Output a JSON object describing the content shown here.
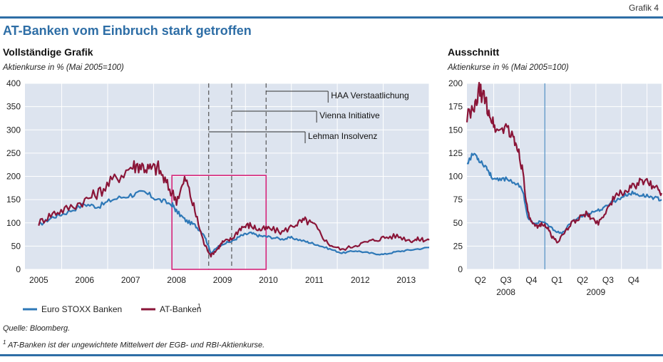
{
  "header": {
    "figure_label": "Grafik 4",
    "title": "AT-Banken vom Einbruch stark getroffen"
  },
  "footer": {
    "source": "Quelle: Bloomberg.",
    "note_marker": "1",
    "note": "AT-Banken ist der ungewichtete Mittelwert der EGB- und RBI-Aktienkurse."
  },
  "colors": {
    "euro": "#2e78b7",
    "at": "#8a1538",
    "box": "#d6257a",
    "panel": "#dde4ef",
    "rule": "#2e6ea6"
  },
  "chart_data": [
    {
      "type": "line",
      "title": "Vollständige Grafik",
      "ylabel": "Aktienkurse in % (Mai 2005=100)",
      "ylim": [
        0,
        400
      ],
      "yticks": [
        0,
        50,
        100,
        150,
        200,
        250,
        300,
        350,
        400
      ],
      "xlim": [
        2004.7,
        2013.5
      ],
      "xtick_labels": [
        "2005",
        "2006",
        "2007",
        "2008",
        "2009",
        "2010",
        "2011",
        "2012",
        "2013"
      ],
      "grid": true,
      "legend_position": "bottom-left",
      "series": [
        {
          "name": "Euro STOXX Banken",
          "x": [
            2005.0,
            2005.3,
            2005.6,
            2006.0,
            2006.3,
            2006.6,
            2007.0,
            2007.3,
            2007.6,
            2007.9,
            2008.0,
            2008.2,
            2008.4,
            2008.6,
            2008.75,
            2008.9,
            2009.0,
            2009.2,
            2009.4,
            2009.6,
            2009.8,
            2010.0,
            2010.3,
            2010.5,
            2010.8,
            2011.0,
            2011.3,
            2011.6,
            2011.9,
            2012.2,
            2012.5,
            2012.8,
            2013.1,
            2013.5
          ],
          "values": [
            95,
            112,
            122,
            140,
            135,
            150,
            160,
            165,
            150,
            140,
            125,
            105,
            95,
            75,
            35,
            48,
            55,
            60,
            72,
            78,
            72,
            70,
            65,
            68,
            60,
            55,
            45,
            35,
            40,
            35,
            32,
            38,
            42,
            47
          ]
        },
        {
          "name": "AT-Banken",
          "x": [
            2005.0,
            2005.3,
            2005.6,
            2006.0,
            2006.3,
            2006.6,
            2007.0,
            2007.2,
            2007.4,
            2007.6,
            2007.8,
            2008.0,
            2008.2,
            2008.4,
            2008.6,
            2008.75,
            2008.9,
            2009.0,
            2009.2,
            2009.4,
            2009.6,
            2009.8,
            2010.0,
            2010.3,
            2010.6,
            2010.8,
            2011.0,
            2011.3,
            2011.6,
            2011.9,
            2012.2,
            2012.5,
            2012.8,
            2013.1,
            2013.3,
            2013.5
          ],
          "values": [
            100,
            120,
            130,
            148,
            165,
            190,
            220,
            225,
            215,
            218,
            180,
            150,
            195,
            125,
            55,
            30,
            45,
            58,
            65,
            90,
            95,
            85,
            88,
            80,
            98,
            105,
            95,
            55,
            42,
            52,
            60,
            68,
            72,
            62,
            65,
            63
          ]
        }
      ],
      "annotations": [
        {
          "label": "Lehman Insolvenz"
        },
        {
          "label": "Vienna Initiative"
        },
        {
          "label": "HAA Verstaatlichung"
        }
      ]
    },
    {
      "type": "line",
      "title": "Ausschnitt",
      "ylabel": "Aktienkurse in % (Mai 2005=100)",
      "ylim": [
        0,
        200
      ],
      "yticks": [
        0,
        25,
        50,
        75,
        100,
        125,
        150,
        175,
        200
      ],
      "xlim": [
        0,
        8
      ],
      "quarter_labels": [
        "Q2",
        "Q3",
        "Q4",
        "Q1",
        "Q2",
        "Q3",
        "Q4"
      ],
      "year_labels": [
        "2008",
        "2009"
      ],
      "grid": true,
      "series": [
        {
          "name": "Euro STOXX Banken",
          "x": [
            0.0,
            0.3,
            0.5,
            0.8,
            1.0,
            1.3,
            1.6,
            2.0,
            2.3,
            2.5,
            2.8,
            3.0,
            3.3,
            3.6,
            3.9,
            4.2,
            4.5,
            4.8,
            5.0,
            5.3,
            5.6,
            5.9,
            6.2,
            6.5,
            6.8,
            7.1,
            7.4,
            7.7,
            8.0
          ],
          "values": [
            115,
            125,
            118,
            110,
            100,
            95,
            98,
            93,
            85,
            55,
            48,
            52,
            48,
            42,
            38,
            48,
            55,
            58,
            60,
            63,
            65,
            72,
            75,
            80,
            82,
            80,
            79,
            77,
            75
          ]
        },
        {
          "name": "AT-Banken",
          "x": [
            0.0,
            0.3,
            0.5,
            0.7,
            0.9,
            1.1,
            1.3,
            1.6,
            1.9,
            2.1,
            2.3,
            2.5,
            2.7,
            2.9,
            3.1,
            3.3,
            3.5,
            3.7,
            4.0,
            4.3,
            4.6,
            4.9,
            5.1,
            5.4,
            5.7,
            6.0,
            6.3,
            6.6,
            6.9,
            7.2,
            7.5,
            7.8,
            8.0
          ],
          "values": [
            165,
            170,
            192,
            185,
            170,
            155,
            148,
            155,
            140,
            130,
            105,
            60,
            48,
            45,
            50,
            45,
            35,
            30,
            38,
            50,
            55,
            60,
            55,
            50,
            62,
            75,
            82,
            85,
            90,
            95,
            92,
            88,
            82
          ]
        }
      ]
    }
  ]
}
